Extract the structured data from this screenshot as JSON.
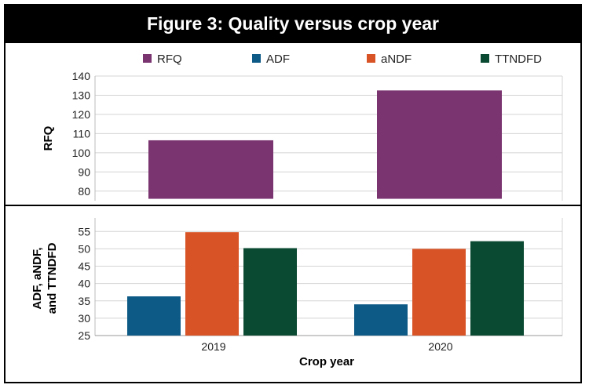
{
  "title": "Figure 3: Quality versus crop year",
  "colors": {
    "RFQ": "#7a3470",
    "ADF": "#0e5a86",
    "aNDF": "#d85426",
    "TTNDFD": "#0b4a32"
  },
  "chart_data": [
    {
      "type": "bar",
      "name": "top",
      "ylabel": "RFQ",
      "categories": [
        "2019",
        "2020"
      ],
      "ylim": [
        75,
        140
      ],
      "yticks": [
        80,
        90,
        100,
        110,
        120,
        130,
        140
      ],
      "bar_base": 76,
      "grid": true,
      "legend_placement": "top",
      "series": [
        {
          "name": "RFQ",
          "values": [
            106.5,
            132.5
          ]
        }
      ]
    },
    {
      "type": "bar",
      "name": "bottom",
      "ylabel": "ADF, aNDF, and TTNDFD",
      "ylabel_lines": [
        "ADF, aNDF,",
        "and TTNDFD"
      ],
      "xlabel": "Crop year",
      "categories": [
        "2019",
        "2020"
      ],
      "ylim": [
        25,
        58
      ],
      "yticks": [
        25,
        30,
        35,
        40,
        45,
        50,
        55
      ],
      "grid": true,
      "series": [
        {
          "name": "ADF",
          "values": [
            36.3,
            34.0
          ]
        },
        {
          "name": "aNDF",
          "values": [
            54.8,
            50.0
          ]
        },
        {
          "name": "TTNDFD",
          "values": [
            50.2,
            52.2
          ]
        }
      ]
    }
  ],
  "legend": [
    "RFQ",
    "ADF",
    "aNDF",
    "TTNDFD"
  ]
}
